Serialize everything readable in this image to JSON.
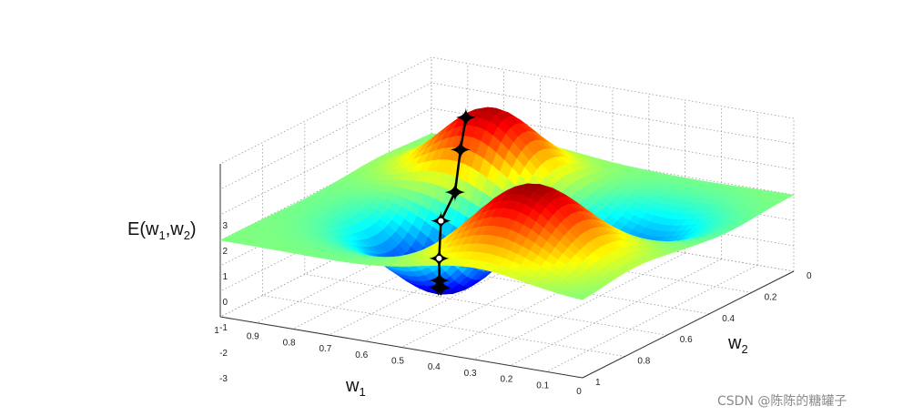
{
  "chart_data": {
    "type": "surface",
    "title": "",
    "xlabel": "w₁",
    "ylabel": "w₂",
    "zlabel": "E(w₁,w₂)",
    "xlabel_parts": {
      "base": "w",
      "sub": "1"
    },
    "ylabel_parts": {
      "base": "w",
      "sub": "2"
    },
    "zlabel_parts": {
      "open": "E(w",
      "sub1": "1",
      "mid": ",w",
      "sub2": "2",
      "close": ")"
    },
    "xlim": [
      0,
      1
    ],
    "ylim": [
      0,
      1
    ],
    "zlim": [
      -3,
      3
    ],
    "x_ticks": [
      "0",
      "0.1",
      "0.2",
      "0.3",
      "0.4",
      "0.5",
      "0.6",
      "0.7",
      "0.8",
      "0.9",
      "1"
    ],
    "y_ticks": [
      "0",
      "0.2",
      "0.4",
      "0.6",
      "0.8",
      "1"
    ],
    "z_ticks": [
      "-3",
      "-2",
      "-1",
      "0",
      "1",
      "2",
      "3"
    ],
    "grid": true,
    "colormap": "jet",
    "surface": {
      "peaks": [
        {
          "w1": 0.7,
          "w2": 0.25,
          "height": 2.8,
          "spread": 0.12
        },
        {
          "w1": 0.3,
          "w2": 0.75,
          "height": 3.0,
          "spread": 0.14
        }
      ],
      "valleys": [
        {
          "w1": 0.6,
          "w2": 0.6,
          "depth": -3.0,
          "spread": 0.14
        },
        {
          "w1": 0.25,
          "w2": 0.3,
          "depth": -1.4,
          "spread": 0.12
        }
      ]
    },
    "descent_path": [
      {
        "w1": 0.73,
        "w2": 0.3
      },
      {
        "w1": 0.71,
        "w2": 0.36
      },
      {
        "w1": 0.69,
        "w2": 0.42
      },
      {
        "w1": 0.7,
        "w2": 0.47
      },
      {
        "w1": 0.67,
        "w2": 0.53
      },
      {
        "w1": 0.64,
        "w2": 0.58
      },
      {
        "w1": 0.62,
        "w2": 0.62
      },
      {
        "w1": 0.6,
        "w2": 0.64
      }
    ]
  },
  "watermark": "CSDN @陈陈的糖罐子"
}
